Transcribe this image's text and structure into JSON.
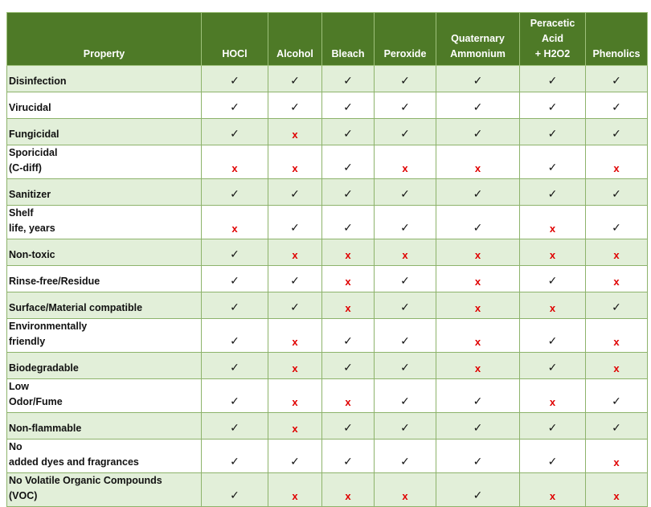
{
  "table": {
    "headers": [
      "Property",
      "HOCl",
      "Alcohol",
      "Bleach",
      "Peroxide",
      "Quaternary\nAmmonium",
      "Peracetic\nAcid\n+ H2O2",
      "Phenolics"
    ],
    "rows": [
      [
        "Disinfection",
        "✓",
        "✓",
        "✓",
        "✓",
        "✓",
        "✓",
        "✓"
      ],
      [
        "Virucidal",
        "✓",
        "✓",
        "✓",
        "✓",
        "✓",
        "✓",
        "✓"
      ],
      [
        "Fungicidal",
        "✓",
        "x",
        "✓",
        "✓",
        "✓",
        "✓",
        "✓"
      ],
      [
        "Sporicidal\n(C-diff)",
        "x",
        "x",
        "✓",
        "x",
        "x",
        "✓",
        "x"
      ],
      [
        "Sanitizer",
        "✓",
        "✓",
        "✓",
        "✓",
        "✓",
        "✓",
        "✓"
      ],
      [
        "Shelf\nlife, years",
        "x",
        "✓",
        "✓",
        "✓",
        "✓",
        "x",
        "✓"
      ],
      [
        "Non-toxic",
        "✓",
        "x",
        "x",
        "x",
        "x",
        "x",
        "x"
      ],
      [
        "Rinse-free/Residue",
        "✓",
        "✓",
        "x",
        "✓",
        "x",
        "✓",
        "x"
      ],
      [
        "Surface/Material compatible",
        "✓",
        "✓",
        "x",
        "✓",
        "x",
        "x",
        "✓"
      ],
      [
        "Environmentally\nfriendly",
        "✓",
        "x",
        "✓",
        "✓",
        "x",
        "✓",
        "x"
      ],
      [
        "Biodegradable",
        "✓",
        "x",
        "✓",
        "✓",
        "x",
        "✓",
        "x"
      ],
      [
        "Low\nOdor/Fume",
        "✓",
        "x",
        "x",
        "✓",
        "✓",
        "x",
        "✓"
      ],
      [
        "Non-flammable",
        "✓",
        "x",
        "✓",
        "✓",
        "✓",
        "✓",
        "✓"
      ],
      [
        "No\nadded dyes and fragrances",
        "✓",
        "✓",
        "✓",
        "✓",
        "✓",
        "✓",
        "x"
      ],
      [
        "No Volatile Organic Compounds\n(VOC)",
        "✓",
        "x",
        "x",
        "x",
        "✓",
        "x",
        "x"
      ]
    ]
  }
}
